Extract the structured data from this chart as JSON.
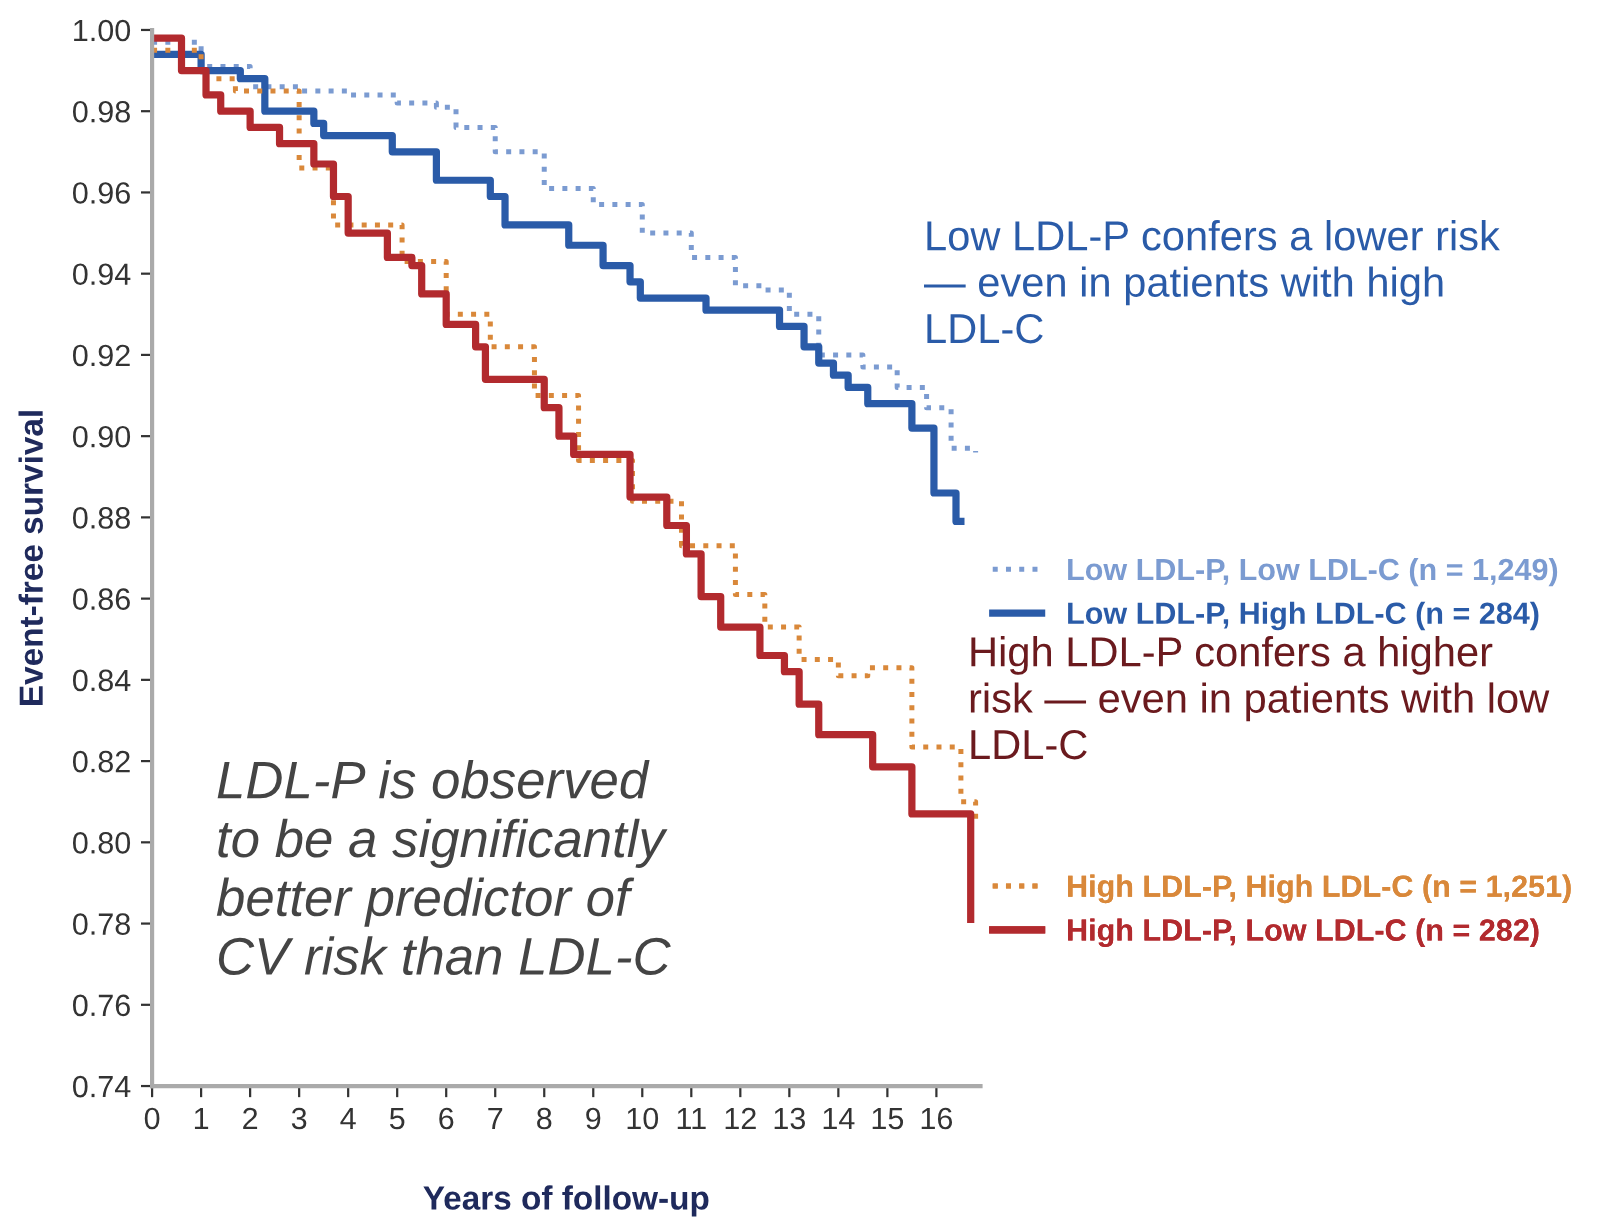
{
  "chart_data": {
    "type": "step",
    "xlabel": "Years of follow-up",
    "ylabel": "Event-free survival",
    "xlim": [
      0,
      16.9
    ],
    "ylim": [
      0.74,
      1.0
    ],
    "xticks": [
      0,
      1,
      2,
      3,
      4,
      5,
      6,
      7,
      8,
      9,
      10,
      11,
      12,
      13,
      14,
      15,
      16
    ],
    "yticks": [
      {
        "value": 0.74,
        "label": "0.74"
      },
      {
        "value": 0.76,
        "label": "0.76"
      },
      {
        "value": 0.78,
        "label": "0.78"
      },
      {
        "value": 0.8,
        "label": "0.80"
      },
      {
        "value": 0.82,
        "label": "0.82"
      },
      {
        "value": 0.84,
        "label": "0.84"
      },
      {
        "value": 0.86,
        "label": "0.86"
      },
      {
        "value": 0.88,
        "label": "0.88"
      },
      {
        "value": 0.9,
        "label": "0.90"
      },
      {
        "value": 0.92,
        "label": "0.92"
      },
      {
        "value": 0.94,
        "label": "0.94"
      },
      {
        "value": 0.96,
        "label": "0.96"
      },
      {
        "value": 0.98,
        "label": "0.98"
      },
      {
        "value": 1.0,
        "label": "1.00"
      }
    ],
    "grid": false,
    "legend": "right",
    "series": [
      {
        "name": "Low LDL-P, Low LDL-C (n = 1,249)",
        "color": "#7b9bd1",
        "line_style": "dotted",
        "x": [
          0,
          1,
          2,
          3,
          4,
          5,
          5.8,
          6.2,
          7,
          8,
          9,
          10,
          11,
          11.9,
          12.5,
          13,
          13.6,
          14.5,
          15.2,
          15.8,
          16.3,
          16.8
        ],
        "values": [
          0.997,
          0.991,
          0.986,
          0.985,
          0.984,
          0.982,
          0.981,
          0.976,
          0.97,
          0.961,
          0.957,
          0.95,
          0.944,
          0.937,
          0.936,
          0.93,
          0.92,
          0.917,
          0.912,
          0.907,
          0.897,
          0.896
        ]
      },
      {
        "name": "Low LDL-P, High LDL-C (n = 284)",
        "color": "#2a5ba8",
        "line_style": "solid",
        "x": [
          0,
          1,
          1.8,
          2.3,
          3.3,
          3.5,
          4.9,
          5.8,
          6.9,
          7.2,
          7.9,
          8.5,
          9.2,
          9.75,
          9.96,
          11.3,
          12.8,
          13.3,
          13.6,
          13.9,
          14.2,
          14.6,
          15.5,
          15.95,
          16.4,
          16.5
        ],
        "values": [
          0.994,
          0.99,
          0.988,
          0.98,
          0.977,
          0.974,
          0.97,
          0.963,
          0.959,
          0.952,
          0.952,
          0.947,
          0.942,
          0.938,
          0.934,
          0.931,
          0.927,
          0.922,
          0.918,
          0.915,
          0.912,
          0.908,
          0.902,
          0.886,
          0.879,
          0.879
        ]
      },
      {
        "name": "High LDL-P, High LDL-C (n = 1,251)",
        "color": "#d9883a",
        "line_style": "dotted",
        "x": [
          0,
          1,
          1.7,
          3,
          3.7,
          5.1,
          6,
          6.9,
          7.8,
          8.7,
          9.8,
          10.8,
          11.9,
          12.5,
          13.2,
          14,
          14.6,
          15.5,
          16.5,
          16.8
        ],
        "values": [
          0.995,
          0.988,
          0.985,
          0.966,
          0.952,
          0.943,
          0.93,
          0.922,
          0.91,
          0.894,
          0.884,
          0.873,
          0.861,
          0.853,
          0.845,
          0.841,
          0.843,
          0.8235,
          0.81,
          0.805
        ]
      },
      {
        "name": "High LDL-P, Low LDL-C (n = 282)",
        "color": "#b22a2e",
        "line_style": "solid",
        "x": [
          0,
          0.6,
          1.1,
          1.4,
          2,
          2.6,
          3.3,
          3.7,
          4,
          4.8,
          5.3,
          5.5,
          6,
          6.6,
          6.8,
          7.4,
          8,
          8.3,
          8.6,
          9.4,
          9.75,
          10.5,
          10.9,
          11.2,
          11.6,
          12.4,
          12.9,
          13.2,
          13.6,
          14.7,
          15.5,
          16.6,
          16.7
        ],
        "values": [
          0.998,
          0.99,
          0.984,
          0.98,
          0.976,
          0.972,
          0.967,
          0.959,
          0.95,
          0.944,
          0.942,
          0.935,
          0.9275,
          0.922,
          0.914,
          0.914,
          0.907,
          0.9,
          0.8955,
          0.8955,
          0.885,
          0.878,
          0.871,
          0.8605,
          0.853,
          0.846,
          0.842,
          0.834,
          0.8265,
          0.8186,
          0.807,
          0.807,
          0.781
        ]
      }
    ],
    "annotations": [
      "Low LDL-P confers a lower risk\n— even in patients with high\nLDL-C",
      "High LDL-P confers a higher\nrisk — even in patients with low\nLDL-C",
      "LDL-P is observed\nto be a significantly\nbetter predictor of\nCV risk than LDL-C"
    ]
  }
}
